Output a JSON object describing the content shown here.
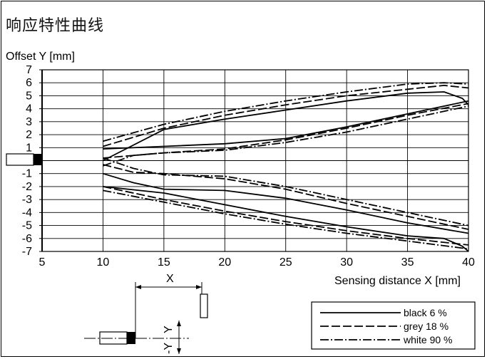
{
  "title": "响应特性曲线",
  "chart_data": {
    "type": "line",
    "title": "响应特性曲线",
    "xlabel": "Sensing distance X [mm]",
    "ylabel": "Offset Y [mm]",
    "xlim": [
      5,
      40
    ],
    "ylim": [
      -7,
      7
    ],
    "xticks": [
      5,
      10,
      15,
      20,
      25,
      30,
      35,
      40
    ],
    "yticks": [
      "7",
      "6",
      "5",
      "4",
      "3",
      "2",
      "1",
      "-1",
      "-2",
      "-3",
      "-4",
      "-5",
      "-6",
      "-7"
    ],
    "grid": true,
    "legend": "bottom-right",
    "series": [
      {
        "name": "black 6 %",
        "style": "solid",
        "curves": [
          {
            "x": [
              10,
              15,
              20,
              25,
              30,
              35,
              38,
              39.5,
              40
            ],
            "y": [
              0,
              2.4,
              3.2,
              3.9,
              4.6,
              5.2,
              5.3,
              4.8,
              4.3
            ]
          },
          {
            "x": [
              10,
              15,
              20,
              25,
              30,
              35,
              40
            ],
            "y": [
              0.9,
              1.1,
              1.3,
              1.7,
              2.6,
              3.6,
              4.6
            ]
          },
          {
            "x": [
              10,
              12.5,
              15,
              20,
              25,
              30,
              35,
              40
            ],
            "y": [
              -1.0,
              -1.7,
              -2.2,
              -2.3,
              -2.9,
              -3.8,
              -4.8,
              -5.6
            ]
          },
          {
            "x": [
              10,
              15,
              20,
              25,
              30,
              35,
              38,
              39.5,
              40
            ],
            "y": [
              -2.0,
              -2.5,
              -3.4,
              -4.3,
              -5.1,
              -5.8,
              -6.0,
              -6.6,
              -7.0
            ]
          }
        ]
      },
      {
        "name": "grey 18 %",
        "style": "dashed",
        "curves": [
          {
            "x": [
              10,
              15,
              20,
              25,
              30,
              35,
              38,
              40
            ],
            "y": [
              1.1,
              2.5,
              3.5,
              4.3,
              5.0,
              5.5,
              5.8,
              5.6
            ]
          },
          {
            "x": [
              10,
              15,
              20,
              25,
              30,
              35,
              40
            ],
            "y": [
              0.2,
              0.6,
              0.9,
              1.6,
              2.5,
              3.5,
              4.4
            ]
          },
          {
            "x": [
              10,
              12.5,
              15,
              20,
              25,
              30,
              35,
              40
            ],
            "y": [
              -0.3,
              -0.9,
              -1.0,
              -1.4,
              -2.2,
              -3.3,
              -4.3,
              -5.3
            ]
          },
          {
            "x": [
              10,
              15,
              20,
              25,
              30,
              35,
              40
            ],
            "y": [
              -2.0,
              -3.0,
              -3.9,
              -4.7,
              -5.4,
              -6.0,
              -6.5
            ]
          }
        ]
      },
      {
        "name": "white 90 %",
        "style": "dashdot",
        "curves": [
          {
            "x": [
              10,
              15,
              20,
              25,
              30,
              35,
              38,
              40
            ],
            "y": [
              1.5,
              2.8,
              3.8,
              4.6,
              5.3,
              5.9,
              6.0,
              5.9
            ]
          },
          {
            "x": [
              10,
              12.5,
              15,
              20,
              25,
              30,
              35,
              40
            ],
            "y": [
              -0.4,
              0.4,
              0.6,
              0.8,
              1.4,
              2.2,
              3.2,
              4.2
            ]
          },
          {
            "x": [
              10,
              12.5,
              15,
              20,
              25,
              30,
              35,
              40
            ],
            "y": [
              0.2,
              -0.6,
              -1.1,
              -1.2,
              -2.0,
              -3.0,
              -4.0,
              -5.0
            ]
          },
          {
            "x": [
              10,
              15,
              20,
              25,
              30,
              35,
              40
            ],
            "y": [
              -2.3,
              -3.2,
              -4.1,
              -4.9,
              -5.6,
              -6.2,
              -6.8
            ]
          }
        ]
      }
    ]
  },
  "diagram": {
    "x_label": "X",
    "y_plus_label": "Y",
    "y_minus_label": "-Y"
  },
  "legend": {
    "items": [
      {
        "label": "black 6 %",
        "style": "solid"
      },
      {
        "label": "grey 18 %",
        "style": "dashed"
      },
      {
        "label": "white 90 %",
        "style": "dashdot"
      }
    ]
  }
}
